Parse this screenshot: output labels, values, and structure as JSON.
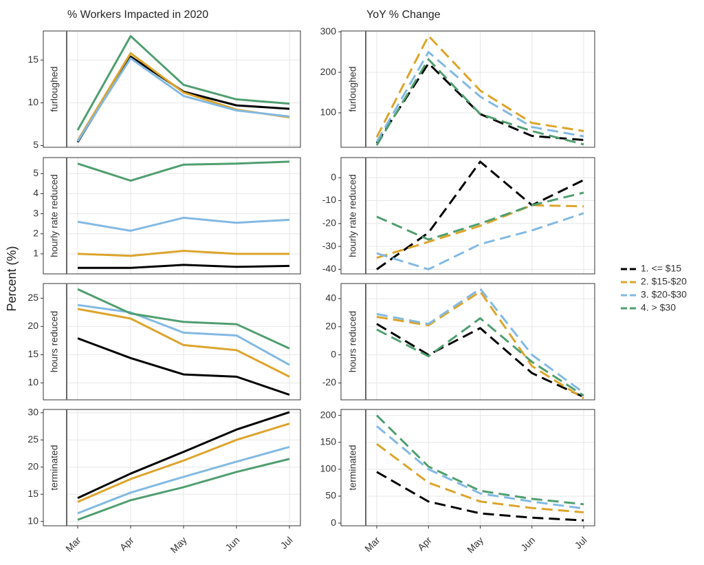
{
  "chart_data": [
    {
      "type": "line",
      "title": "% Workers Impacted in 2020",
      "ylabel": "Percent (%)",
      "facet": "furloughed",
      "legend": "right",
      "grid": true,
      "linestyle": "solid",
      "categories": [
        "Mar",
        "Apr",
        "May",
        "Jun",
        "Jul"
      ],
      "ylim": [
        4.8,
        18.4
      ],
      "yticks": [
        5,
        10,
        15
      ],
      "series": [
        {
          "name": "1. <= $15",
          "color": "#000000",
          "values": [
            5.4,
            15.4,
            11.3,
            9.7,
            9.3
          ]
        },
        {
          "name": "2. $15-$20",
          "color": "#dca42a",
          "values": [
            5.6,
            15.8,
            11.2,
            9.2,
            8.3
          ]
        },
        {
          "name": "3. $20-$30",
          "color": "#82b9e3",
          "values": [
            5.5,
            15.2,
            10.8,
            9.1,
            8.4
          ]
        },
        {
          "name": "4. > $30",
          "color": "#4f9e6f",
          "values": [
            6.8,
            17.8,
            12.1,
            10.4,
            9.9
          ]
        }
      ]
    },
    {
      "type": "line",
      "title": "YoY % Change",
      "facet": "furloughed",
      "grid": true,
      "linestyle": "dashed",
      "categories": [
        "Mar",
        "Apr",
        "May",
        "Jun",
        "Jul"
      ],
      "ylim": [
        15,
        302
      ],
      "yticks": [
        100,
        200,
        300
      ],
      "series": [
        {
          "name": "1. <= $15",
          "color": "#000000",
          "values": [
            25,
            222,
            97,
            43,
            33
          ]
        },
        {
          "name": "2. $15-$20",
          "color": "#dca42a",
          "values": [
            40,
            290,
            155,
            75,
            55
          ]
        },
        {
          "name": "3. $20-$30",
          "color": "#82b9e3",
          "values": [
            28,
            250,
            140,
            65,
            42
          ]
        },
        {
          "name": "4. > $30",
          "color": "#4f9e6f",
          "values": [
            20,
            232,
            97,
            55,
            22
          ]
        }
      ]
    },
    {
      "type": "line",
      "facet": "hourly rate reduced",
      "grid": true,
      "linestyle": "solid",
      "categories": [
        "Mar",
        "Apr",
        "May",
        "Jun",
        "Jul"
      ],
      "ylim": [
        0,
        5.8
      ],
      "yticks": [
        1,
        2,
        3,
        4,
        5
      ],
      "series": [
        {
          "name": "1. <= $15",
          "color": "#000000",
          "values": [
            0.3,
            0.3,
            0.45,
            0.35,
            0.4
          ]
        },
        {
          "name": "2. $15-$20",
          "color": "#dca42a",
          "values": [
            1.0,
            0.9,
            1.15,
            1.0,
            1.0
          ]
        },
        {
          "name": "3. $20-$30",
          "color": "#82b9e3",
          "values": [
            2.6,
            2.15,
            2.8,
            2.55,
            2.7
          ]
        },
        {
          "name": "4. > $30",
          "color": "#4f9e6f",
          "values": [
            5.5,
            4.65,
            5.45,
            5.5,
            5.6
          ]
        }
      ]
    },
    {
      "type": "line",
      "facet": "hourly rate reduced",
      "grid": true,
      "linestyle": "dashed",
      "categories": [
        "Mar",
        "Apr",
        "May",
        "Jun",
        "Jul"
      ],
      "ylim": [
        -42,
        8.8
      ],
      "yticks": [
        -40,
        -30,
        -20,
        -10,
        0
      ],
      "series": [
        {
          "name": "1. <= $15",
          "color": "#000000",
          "values": [
            -40,
            -24,
            7,
            -12,
            -1
          ]
        },
        {
          "name": "2. $15-$20",
          "color": "#dca42a",
          "values": [
            -35,
            -28,
            -21,
            -12,
            -12.5
          ]
        },
        {
          "name": "3. $20-$30",
          "color": "#82b9e3",
          "values": [
            -33,
            -40,
            -29,
            -23,
            -15.5
          ]
        },
        {
          "name": "4. > $30",
          "color": "#4f9e6f",
          "values": [
            -17,
            -27,
            -20,
            -12,
            -6.5
          ]
        }
      ]
    },
    {
      "type": "line",
      "facet": "hours reduced",
      "grid": true,
      "linestyle": "solid",
      "categories": [
        "Mar",
        "Apr",
        "May",
        "Jun",
        "Jul"
      ],
      "ylim": [
        7,
        27.6
      ],
      "yticks": [
        10,
        15,
        20,
        25
      ],
      "series": [
        {
          "name": "1. <= $15",
          "color": "#000000",
          "values": [
            17.9,
            14.4,
            11.5,
            11.1,
            7.9
          ]
        },
        {
          "name": "2. $15-$20",
          "color": "#dca42a",
          "values": [
            23.1,
            21.4,
            16.7,
            15.8,
            11.1
          ]
        },
        {
          "name": "3. $20-$30",
          "color": "#82b9e3",
          "values": [
            23.8,
            22.5,
            18.9,
            18.4,
            13.2
          ]
        },
        {
          "name": "4. > $30",
          "color": "#4f9e6f",
          "values": [
            26.6,
            22.3,
            20.8,
            20.4,
            16.1
          ]
        }
      ]
    },
    {
      "type": "line",
      "facet": "hours reduced",
      "grid": true,
      "linestyle": "dashed",
      "categories": [
        "Mar",
        "Apr",
        "May",
        "Jun",
        "Jul"
      ],
      "ylim": [
        -32,
        50.7
      ],
      "yticks": [
        -20,
        0,
        20,
        40
      ],
      "series": [
        {
          "name": "1. <= $15",
          "color": "#000000",
          "values": [
            22,
            0,
            19,
            -13,
            -30
          ]
        },
        {
          "name": "2. $15-$20",
          "color": "#dca42a",
          "values": [
            27,
            21,
            45,
            -8,
            -31
          ]
        },
        {
          "name": "3. $20-$30",
          "color": "#82b9e3",
          "values": [
            29,
            22,
            47,
            0,
            -27
          ]
        },
        {
          "name": "4. > $30",
          "color": "#4f9e6f",
          "values": [
            18,
            -1,
            26,
            -5,
            -29
          ]
        }
      ]
    },
    {
      "type": "line",
      "facet": "terminated",
      "grid": true,
      "linestyle": "solid",
      "categories": [
        "Mar",
        "Apr",
        "May",
        "Jun",
        "Jul"
      ],
      "ylim": [
        9.2,
        30.6
      ],
      "yticks": [
        10,
        15,
        20,
        25,
        30
      ],
      "series": [
        {
          "name": "1. <= $15",
          "color": "#000000",
          "values": [
            14.3,
            18.8,
            22.8,
            26.9,
            30.1
          ]
        },
        {
          "name": "2. $15-$20",
          "color": "#dca42a",
          "values": [
            13.6,
            17.8,
            21.2,
            25,
            28
          ]
        },
        {
          "name": "3. $20-$30",
          "color": "#82b9e3",
          "values": [
            11.5,
            15.3,
            18.2,
            21,
            23.7
          ]
        },
        {
          "name": "4. > $30",
          "color": "#4f9e6f",
          "values": [
            10.3,
            13.9,
            16.3,
            19.1,
            21.5
          ]
        }
      ]
    },
    {
      "type": "line",
      "facet": "terminated",
      "grid": true,
      "linestyle": "dashed",
      "categories": [
        "Mar",
        "Apr",
        "May",
        "Jun",
        "Jul"
      ],
      "ylim": [
        -5,
        211
      ],
      "yticks": [
        0,
        50,
        100,
        150,
        200
      ],
      "series": [
        {
          "name": "1. <= $15",
          "color": "#000000",
          "values": [
            95,
            40,
            18,
            10,
            5
          ]
        },
        {
          "name": "2. $15-$20",
          "color": "#dca42a",
          "values": [
            147,
            75,
            40,
            28,
            20
          ]
        },
        {
          "name": "3. $20-$30",
          "color": "#82b9e3",
          "values": [
            180,
            100,
            55,
            40,
            27
          ]
        },
        {
          "name": "4. > $30",
          "color": "#4f9e6f",
          "values": [
            200,
            105,
            60,
            45,
            35
          ]
        }
      ]
    }
  ]
}
